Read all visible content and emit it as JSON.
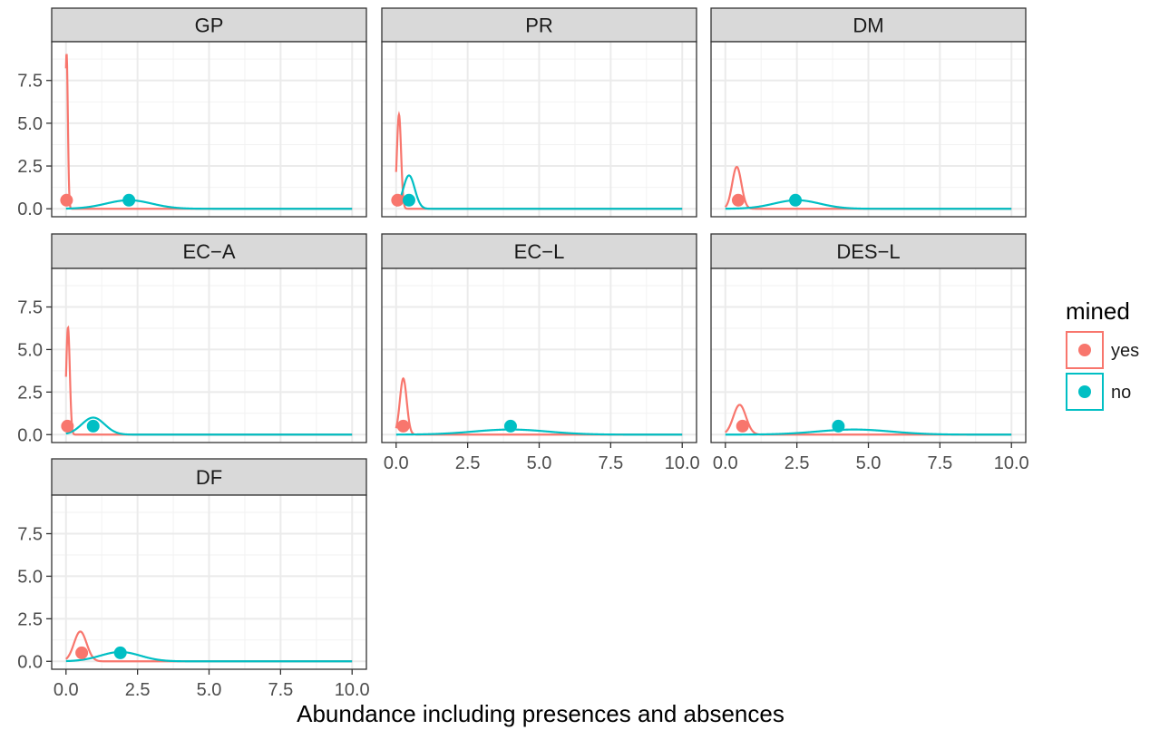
{
  "chart_data": {
    "type": "line",
    "xlabel": "Abundance including presences and absences",
    "ylabel": "",
    "xlim": [
      0,
      10
    ],
    "ylim": [
      0,
      9.3
    ],
    "x_ticks": [
      "0.0",
      "2.5",
      "5.0",
      "7.5",
      "10.0"
    ],
    "y_ticks": [
      "0.0",
      "2.5",
      "5.0",
      "7.5"
    ],
    "grid": true,
    "legend": {
      "title": "mined",
      "placement": "right",
      "entries": [
        {
          "label": "yes",
          "color": "#F8766D"
        },
        {
          "label": "no",
          "color": "#00BFC4"
        }
      ]
    },
    "panels": [
      {
        "name": "GP",
        "series": [
          {
            "name": "yes",
            "color": "#F8766D",
            "peak_x": 0.02,
            "peak_y": 9.1,
            "sd": 0.044,
            "point": [
              0.02,
              0.5
            ]
          },
          {
            "name": "no",
            "color": "#00BFC4",
            "peak_x": 2.2,
            "peak_y": 0.5,
            "sd": 0.8,
            "point": [
              2.2,
              0.5
            ]
          }
        ]
      },
      {
        "name": "PR",
        "series": [
          {
            "name": "yes",
            "color": "#F8766D",
            "peak_x": 0.1,
            "peak_y": 5.5,
            "sd": 0.073,
            "point": [
              0.05,
              0.5
            ]
          },
          {
            "name": "no",
            "color": "#00BFC4",
            "peak_x": 0.45,
            "peak_y": 1.95,
            "sd": 0.2,
            "point": [
              0.45,
              0.5
            ]
          }
        ]
      },
      {
        "name": "DM",
        "series": [
          {
            "name": "yes",
            "color": "#F8766D",
            "peak_x": 0.4,
            "peak_y": 2.45,
            "sd": 0.16,
            "point": [
              0.45,
              0.5
            ]
          },
          {
            "name": "no",
            "color": "#00BFC4",
            "peak_x": 2.5,
            "peak_y": 0.5,
            "sd": 0.8,
            "point": [
              2.45,
              0.5
            ]
          }
        ]
      },
      {
        "name": "EC−A",
        "series": [
          {
            "name": "yes",
            "color": "#F8766D",
            "peak_x": 0.07,
            "peak_y": 6.3,
            "sd": 0.063,
            "point": [
              0.05,
              0.5
            ]
          },
          {
            "name": "no",
            "color": "#00BFC4",
            "peak_x": 0.95,
            "peak_y": 1.0,
            "sd": 0.4,
            "point": [
              0.95,
              0.5
            ]
          }
        ]
      },
      {
        "name": "EC−L",
        "series": [
          {
            "name": "yes",
            "color": "#F8766D",
            "peak_x": 0.25,
            "peak_y": 3.3,
            "sd": 0.12,
            "point": [
              0.25,
              0.5
            ]
          },
          {
            "name": "no",
            "color": "#00BFC4",
            "peak_x": 4.0,
            "peak_y": 0.3,
            "sd": 1.3,
            "point": [
              4.0,
              0.5
            ]
          }
        ]
      },
      {
        "name": "DES−L",
        "series": [
          {
            "name": "yes",
            "color": "#F8766D",
            "peak_x": 0.5,
            "peak_y": 1.75,
            "sd": 0.22,
            "point": [
              0.6,
              0.5
            ]
          },
          {
            "name": "no",
            "color": "#00BFC4",
            "peak_x": 4.5,
            "peak_y": 0.3,
            "sd": 1.3,
            "point": [
              3.95,
              0.5
            ]
          }
        ]
      },
      {
        "name": "DF",
        "series": [
          {
            "name": "yes",
            "color": "#F8766D",
            "peak_x": 0.5,
            "peak_y": 1.75,
            "sd": 0.22,
            "point": [
              0.55,
              0.5
            ]
          },
          {
            "name": "no",
            "color": "#00BFC4",
            "peak_x": 1.9,
            "peak_y": 0.55,
            "sd": 0.7,
            "point": [
              1.9,
              0.5
            ]
          }
        ]
      }
    ]
  }
}
